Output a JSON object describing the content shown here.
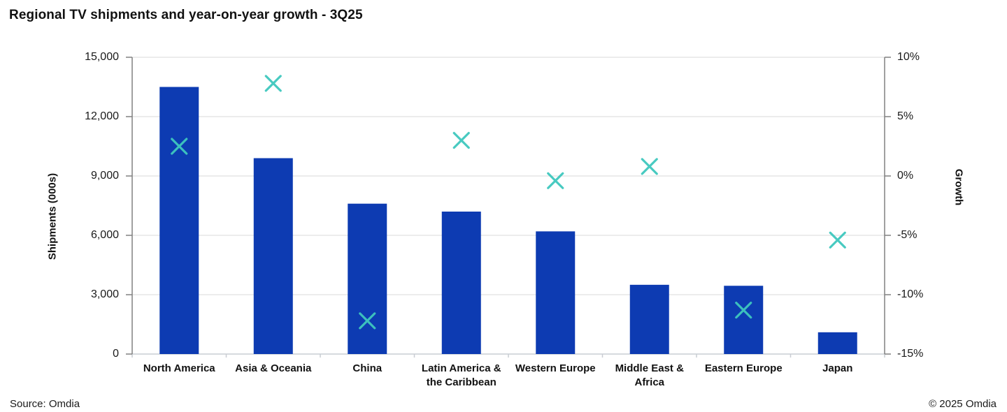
{
  "title": "Regional TV shipments and year-on-year growth - 3Q25",
  "footer": {
    "source": "Source: Omdia",
    "copyright": "© 2025 Omdia"
  },
  "colors": {
    "bar": "#0d3bb2",
    "marker": "#3fc8be",
    "gridline": "#d9d9d9",
    "axis_line": "#808080",
    "bottom_axis_line": "#c9cdd3",
    "text": "#1a1a1a"
  },
  "chart_data": {
    "type": "combo-bar-scatter-dual-axis",
    "title": "Regional TV shipments and year-on-year growth - 3Q25",
    "categories": [
      "North America",
      "Asia & Oceania",
      "China",
      "Latin America & the Caribbean",
      "Western Europe",
      "Middle East & Africa",
      "Eastern Europe",
      "Japan"
    ],
    "series": [
      {
        "name": "Shipments (000s)",
        "type": "bar",
        "axis": "left",
        "values": [
          13500,
          9900,
          7600,
          7200,
          6200,
          3500,
          3450,
          1100
        ]
      },
      {
        "name": "Growth",
        "type": "scatter",
        "marker": "x",
        "axis": "right",
        "values_pct": [
          2.5,
          7.8,
          -12.2,
          3.0,
          -0.4,
          0.8,
          -11.3,
          -5.4
        ]
      }
    ],
    "left_axis": {
      "label": "Shipments (000s)",
      "min": 0,
      "max": 15000,
      "tick_step": 3000,
      "tick_labels": [
        "0",
        "3,000",
        "6,000",
        "9,000",
        "12,000",
        "15,000"
      ]
    },
    "right_axis": {
      "label": "Growth",
      "min": -15,
      "max": 10,
      "tick_step": 5,
      "tick_labels": [
        "-15%",
        "-10%",
        "-5%",
        "0%",
        "5%",
        "10%"
      ]
    },
    "grid": true,
    "legend": false
  }
}
